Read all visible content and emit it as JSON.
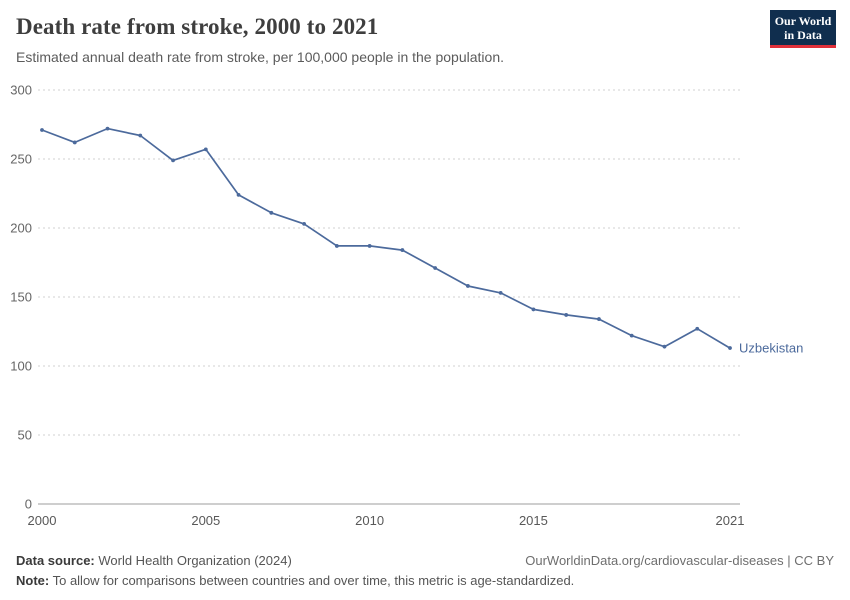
{
  "header": {
    "title": "Death rate from stroke, 2000 to 2021",
    "subtitle": "Estimated annual death rate from stroke, per 100,000 people in the population.",
    "logo": {
      "line1": "Our World",
      "line2": "in Data"
    }
  },
  "chart_data": {
    "type": "line",
    "title": "Death rate from stroke, 2000 to 2021",
    "xlabel": "",
    "ylabel": "Estimated annual death rate from stroke, per 100,000 people",
    "xlim": [
      2000,
      2021
    ],
    "ylim": [
      0,
      300
    ],
    "x_ticks": [
      2000,
      2005,
      2010,
      2015,
      2021
    ],
    "y_ticks": [
      0,
      50,
      100,
      150,
      200,
      250,
      300
    ],
    "grid": "horizontal-dotted",
    "legend_position": "end-of-line",
    "series": [
      {
        "name": "Uzbekistan",
        "color": "#4c6a9c",
        "x": [
          2000,
          2001,
          2002,
          2003,
          2004,
          2005,
          2006,
          2007,
          2008,
          2009,
          2010,
          2011,
          2012,
          2013,
          2014,
          2015,
          2016,
          2017,
          2018,
          2019,
          2020,
          2021
        ],
        "values": [
          271,
          262,
          272,
          267,
          249,
          257,
          224,
          211,
          203,
          187,
          187,
          184,
          171,
          158,
          153,
          141,
          137,
          134,
          122,
          114,
          127,
          113
        ]
      }
    ]
  },
  "footer": {
    "source_label": "Data source:",
    "source_text": " World Health Organization (2024)",
    "link_text": "OurWorldinData.org/cardiovascular-diseases | CC BY",
    "note_label": "Note:",
    "note_text": " To allow for comparisons between countries and over time, this metric is age-standardized."
  },
  "colors": {
    "accent": "#4c6a9c",
    "logo_bg": "#102e4e",
    "logo_red": "#e0303a",
    "grid": "#d2d2d2",
    "axis": "#9e9e9e",
    "tick_label": "#666666"
  }
}
